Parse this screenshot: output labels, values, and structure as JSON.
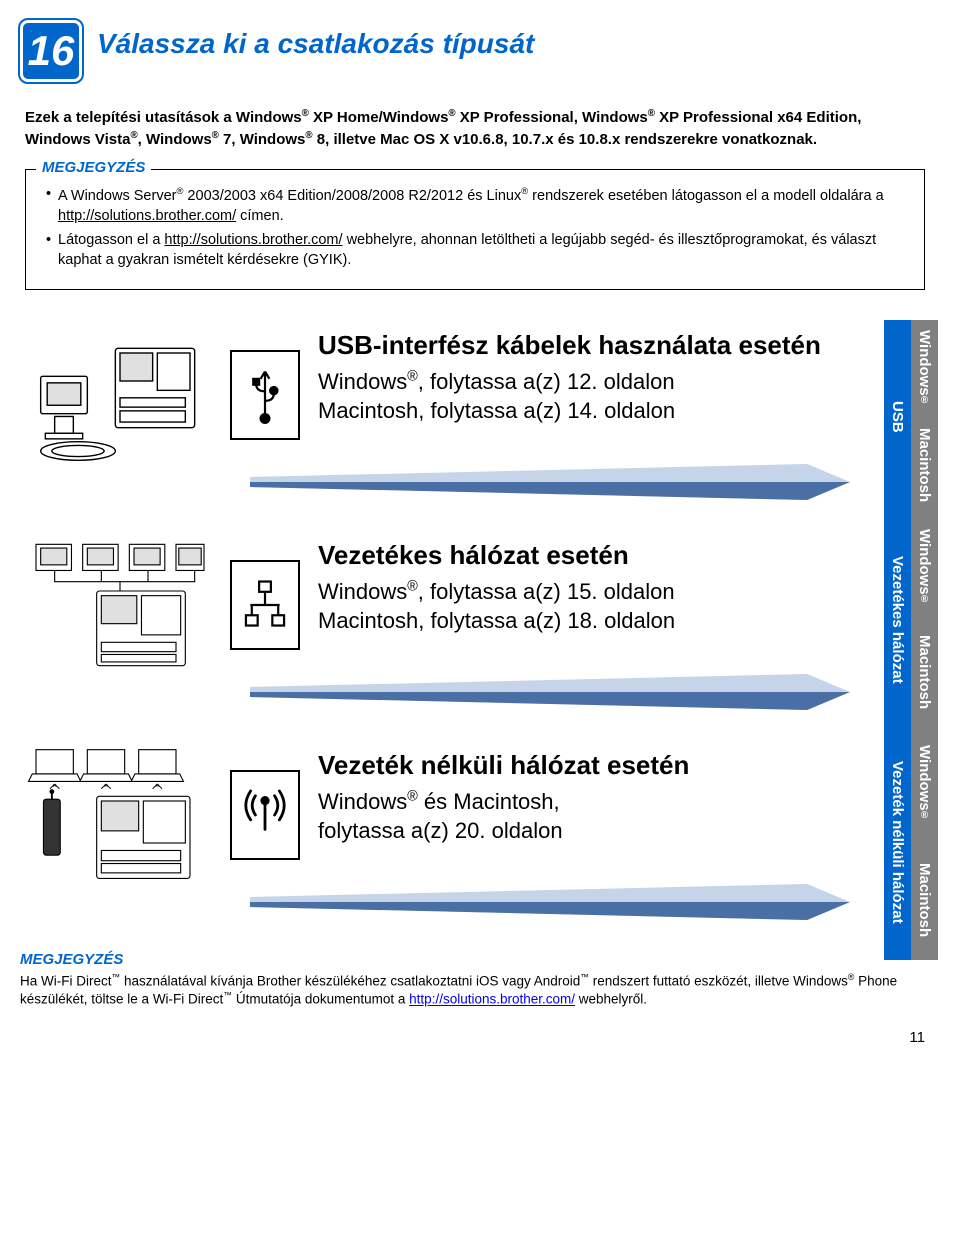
{
  "step_number": "16",
  "step_title": "Válassza ki a csatlakozás típusát",
  "intro_text": "Ezek a telepítési utasítások a Windows® XP Home/Windows® XP Professional, Windows® XP Professional x64 Edition, Windows Vista®, Windows® 7, Windows® 8, illetve Mac OS X v10.6.8, 10.7.x és 10.8.x rendszerekre vonatkoznak.",
  "note_label": "MEGJEGYZÉS",
  "note_items": [
    "A Windows Server® 2003/2003 x64 Edition/2008/2008 R2/2012 és Linux® rendszerek esetében látogasson el a modell oldalára a http://solutions.brother.com/ címen.",
    "Látogasson el a http://solutions.brother.com/ webhelyre, ahonnan letöltheti a legújabb segéd- és illesztőprogramokat, és választ kaphat a gyakran ismételt kérdésekre (GYIK)."
  ],
  "connections": [
    {
      "title": "USB-interfész kábelek használata esetén",
      "line1": "Windows®, folytassa a(z) 12. oldalon",
      "line2": "Macintosh, folytassa a(z) 14. oldalon",
      "tab1": "USB",
      "tab2a": "Windows®",
      "tab2b": "Macintosh",
      "tab1_h": 195,
      "tab2a_h": 97,
      "tab2b_h": 98
    },
    {
      "title": "Vezetékes hálózat esetén",
      "line1": "Windows®, folytassa a(z) 15. oldalon",
      "line2": "Macintosh, folytassa a(z) 18. oldalon",
      "tab1": "Vezetékes hálózat",
      "tab2a": "Windows®",
      "tab2b": "Macintosh",
      "tab1_h": 210,
      "tab2a_h": 105,
      "tab2b_h": 105
    },
    {
      "title": "Vezeték nélküli hálózat esetén",
      "line1": "Windows® és Macintosh,",
      "line2": "folytassa a(z) 20. oldalon",
      "tab1": "Vezeték nélküli hálózat",
      "tab2a": "Windows®",
      "tab2b": "Macintosh",
      "tab1_h": 235,
      "tab2a_h": 117,
      "tab2b_h": 118
    }
  ],
  "footer_label": "MEGJEGYZÉS",
  "footer_text": "Ha Wi-Fi Direct™ használatával kívánja Brother készülékéhez csatlakoztatni iOS vagy Android™ rendszert futtató eszközét, illetve Windows® Phone készülékét, töltse le a Wi-Fi Direct™ Útmutatója dokumentumot a http://solutions.brother.com/ webhelyről.",
  "page_number": "11",
  "colors": {
    "blue": "#0066cc",
    "gray": "#808080",
    "arrow_light": "#c5d4e8",
    "arrow_dark": "#4a6fa5"
  }
}
